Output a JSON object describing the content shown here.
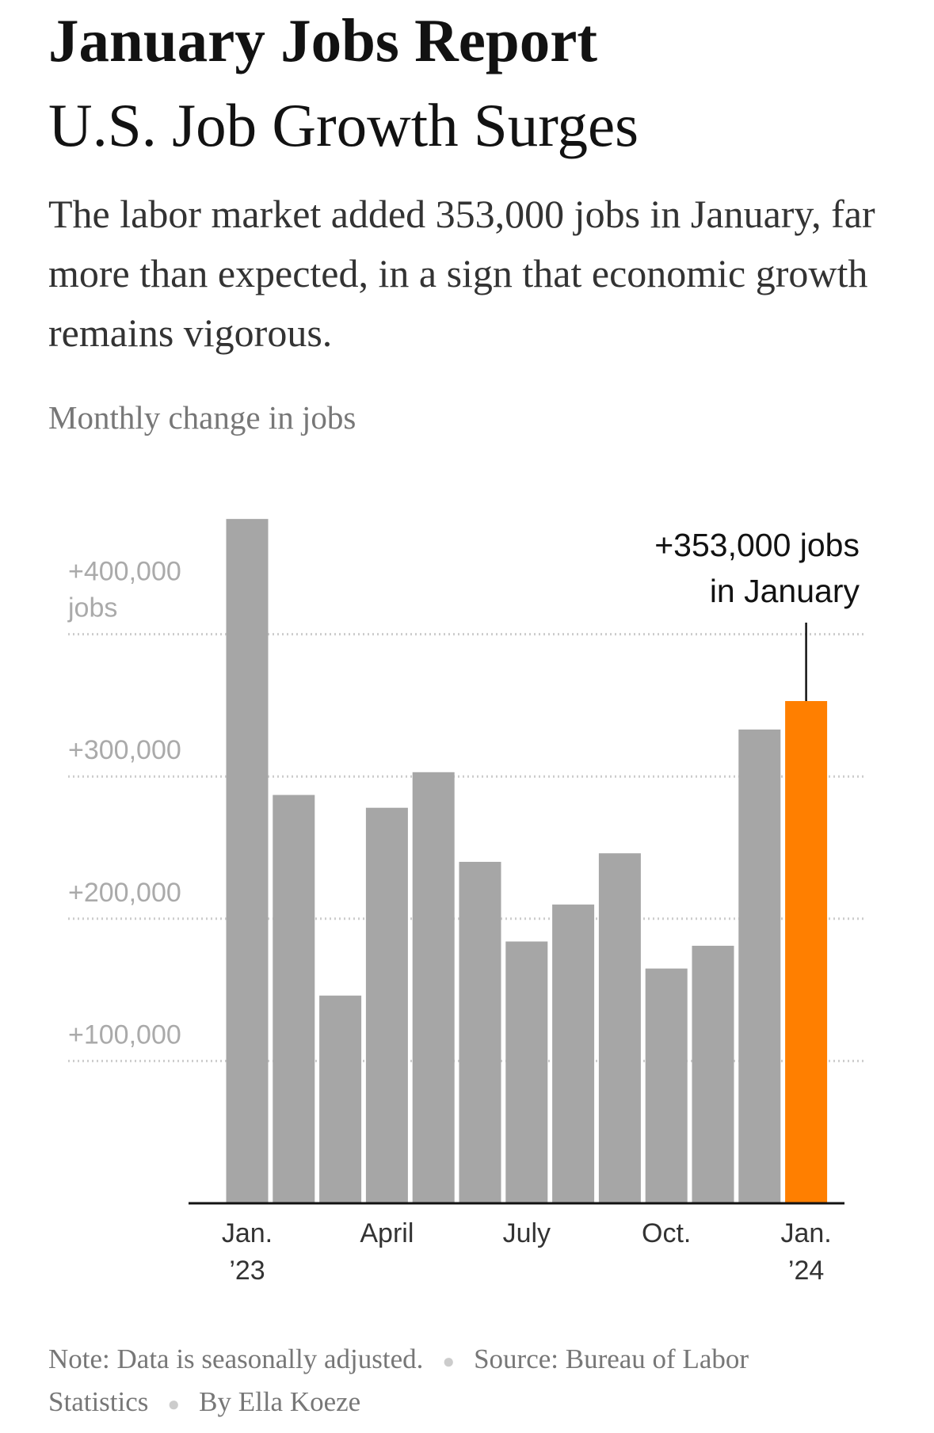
{
  "chart_data": {
    "type": "bar",
    "title": "January Jobs Report",
    "subtitle": "U.S. Job Growth Surges",
    "description": "The labor market added 353,000 jobs in January, far more than expected, in a sign that economic growth remains vigorous.",
    "y_label": "Monthly change in jobs",
    "y_unit": "jobs",
    "categories": [
      [
        "Jan.",
        "’23"
      ],
      null,
      null,
      [
        "April"
      ],
      null,
      null,
      [
        "July"
      ],
      null,
      null,
      [
        "Oct."
      ],
      null,
      null,
      [
        "Jan.",
        "’24"
      ]
    ],
    "values": [
      481000,
      287000,
      146000,
      278000,
      303000,
      240000,
      184000,
      210000,
      246000,
      165000,
      181000,
      333000,
      353000
    ],
    "colors": [
      "#a6a6a6",
      "#a6a6a6",
      "#a6a6a6",
      "#a6a6a6",
      "#a6a6a6",
      "#a6a6a6",
      "#a6a6a6",
      "#a6a6a6",
      "#a6a6a6",
      "#a6a6a6",
      "#a6a6a6",
      "#a6a6a6",
      "#ff7f00"
    ],
    "ylim": [
      0,
      500000
    ],
    "yticks": [
      {
        "value": 100000,
        "label": "+100,000"
      },
      {
        "value": 200000,
        "label": "+200,000"
      },
      {
        "value": 300000,
        "label": "+300,000"
      },
      {
        "value": 400000,
        "label": "+400,000"
      }
    ],
    "grid": true,
    "annotation": {
      "index": 12,
      "lines": [
        "+353,000 jobs",
        "in January"
      ]
    },
    "note": "Note: Data is seasonally adjusted.",
    "source": "Source: Bureau of Labor Statistics",
    "byline": "By Ella Koeze"
  }
}
